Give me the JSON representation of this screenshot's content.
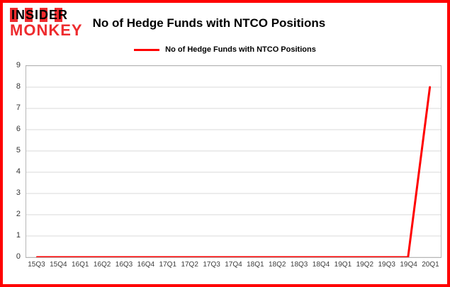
{
  "logo": {
    "line1": "INSIDER",
    "line2": "MONKEY"
  },
  "header": {
    "title": "No of Hedge Funds with NTCO Positions"
  },
  "legend": {
    "label": "No of Hedge Funds with NTCO Positions",
    "color": "#ff0000"
  },
  "colors": {
    "frame_border": "#ff0000",
    "series_line": "#ff0000",
    "gridline": "#d9d9d9",
    "plot_border": "#b7b7b7"
  },
  "chart_data": {
    "type": "line",
    "title": "No of Hedge Funds with NTCO Positions",
    "categories": [
      "15Q3",
      "15Q4",
      "16Q1",
      "16Q2",
      "16Q3",
      "16Q4",
      "17Q1",
      "17Q2",
      "17Q3",
      "17Q4",
      "18Q1",
      "18Q2",
      "18Q3",
      "18Q4",
      "19Q1",
      "19Q2",
      "19Q3",
      "19Q4",
      "20Q1"
    ],
    "series": [
      {
        "name": "No of Hedge Funds with NTCO Positions",
        "color": "#ff0000",
        "values": [
          0,
          0,
          0,
          0,
          0,
          0,
          0,
          0,
          0,
          0,
          0,
          0,
          0,
          0,
          0,
          0,
          0,
          0,
          8
        ]
      }
    ],
    "xlabel": "",
    "ylabel": "",
    "ylim": [
      0,
      9
    ],
    "yticks": [
      0,
      1,
      2,
      3,
      4,
      5,
      6,
      7,
      8,
      9
    ],
    "grid": true,
    "legend_position": "top-center"
  }
}
